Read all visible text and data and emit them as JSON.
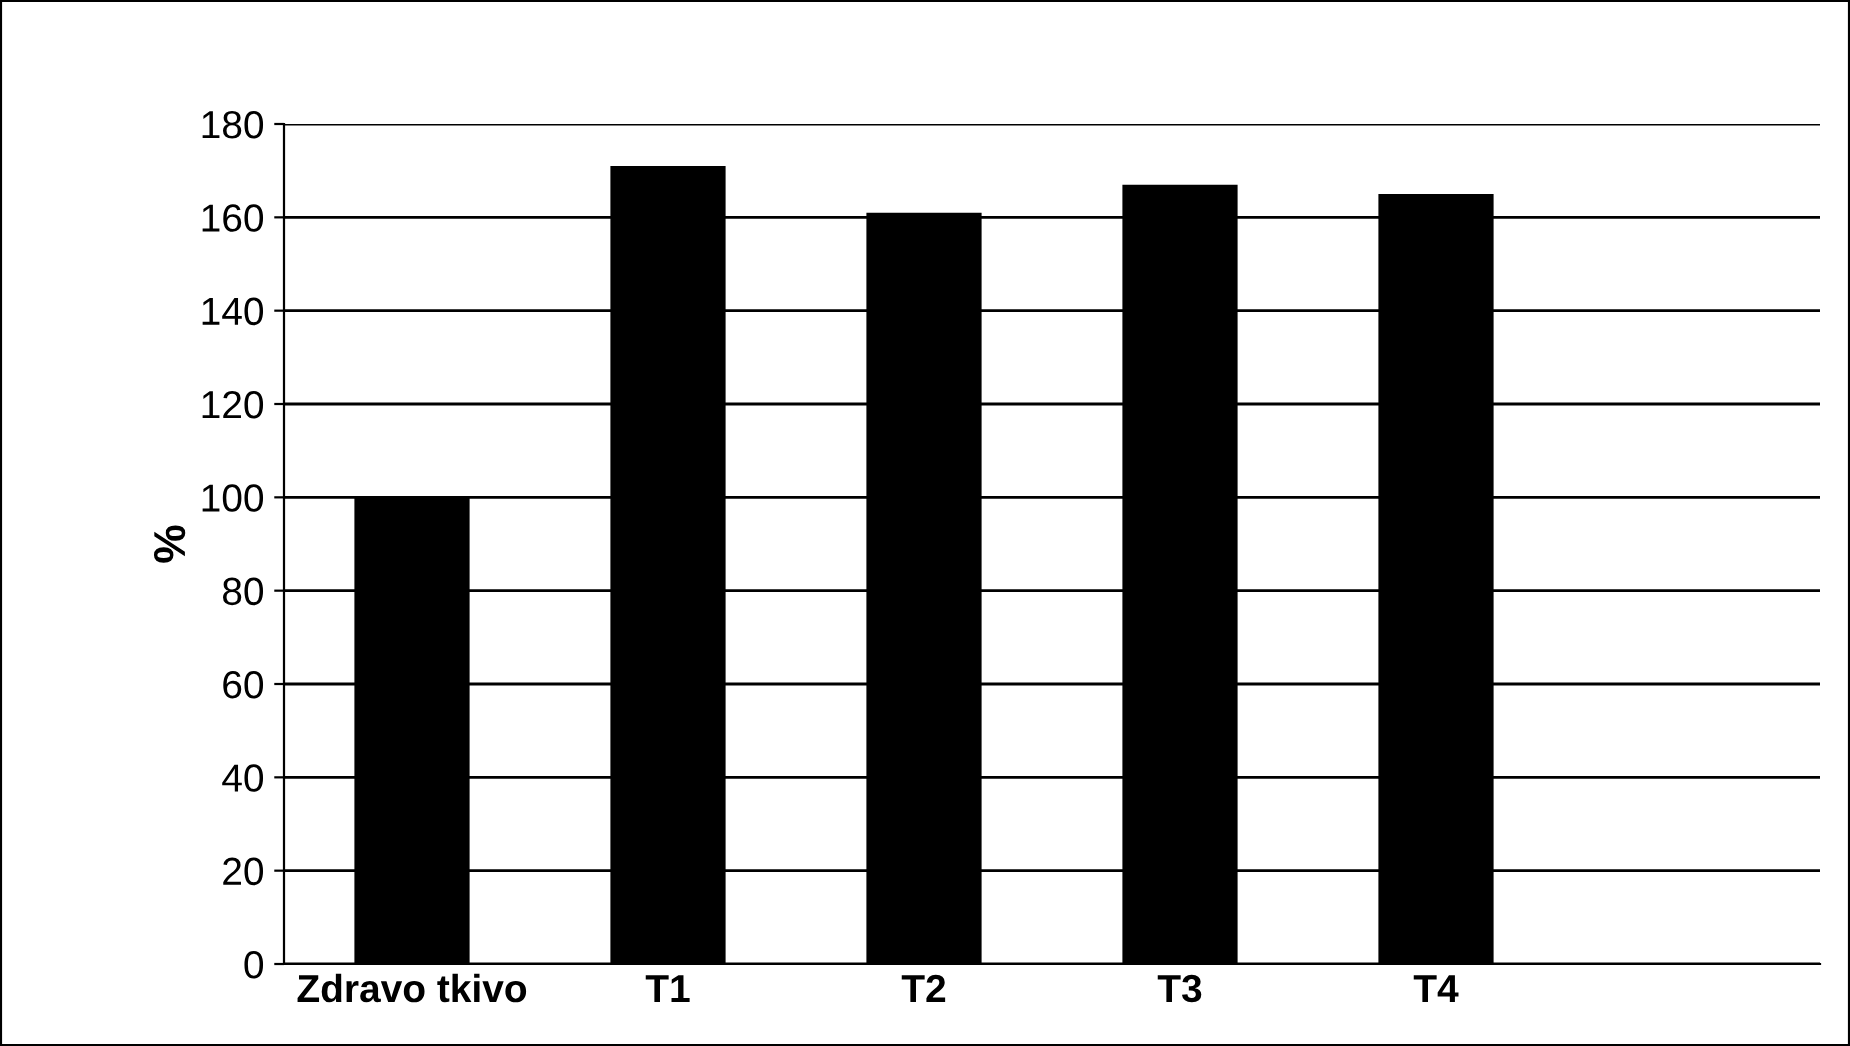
{
  "chart_data": {
    "type": "bar",
    "ylabel": "%",
    "categories": [
      "Zdravo tkivo",
      "T1",
      "T2",
      "T3",
      "T4",
      null
    ],
    "values": [
      100,
      171,
      161,
      167,
      165,
      null
    ],
    "color": "#000000",
    "ylim": [
      0,
      180
    ],
    "yticks": [
      0,
      20,
      40,
      60,
      80,
      100,
      120,
      140,
      160,
      180
    ],
    "grid": "y"
  }
}
